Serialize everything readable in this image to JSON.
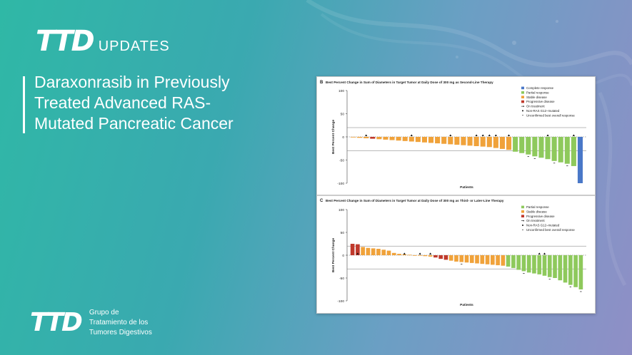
{
  "brand": {
    "logo_text": "TTD",
    "updates": "UPDATES",
    "group_name_lines": [
      "Grupo de",
      "Tratamiento de los",
      "Tumores Digestivos"
    ]
  },
  "slide": {
    "title_lines": [
      "Daraxonrasib in Previously",
      "Treated Advanced RAS-",
      "Mutated Pancreatic Cancer"
    ]
  },
  "colors": {
    "complete_response": "#4a78c8",
    "partial_response": "#8ec95c",
    "stable_disease": "#f0a23a",
    "progressive_disease": "#c0392b"
  },
  "legend_labels": {
    "complete_response": "Complete response",
    "partial_response": "Partial response",
    "stable_disease": "Stable disease",
    "progressive_disease": "Progressive disease",
    "on_treatment": "On treatment",
    "non_g12": "Non-RAS G12–mutated",
    "unconfirmed": "Unconfirmed best overall response"
  },
  "chart_data": [
    {
      "type": "bar",
      "panel": "B",
      "title": "Best Percent Change in Sum of Diameters in Target Tumor at Daily Dose of 300 mg as Second-Line Therapy",
      "xlabel": "Patients",
      "ylabel": "Best Percent Change",
      "ylim": [
        -100,
        100
      ],
      "yticks": [
        100,
        50,
        0,
        -50,
        -100
      ],
      "reference_lines": [
        20,
        -30
      ],
      "legend": [
        "complete_response",
        "partial_response",
        "stable_disease",
        "progressive_disease",
        "on_treatment",
        "non_g12",
        "unconfirmed"
      ],
      "values": [
        -1,
        -2,
        -3,
        -4,
        -5,
        -6,
        -7,
        -8,
        -9,
        -10,
        -11,
        -12,
        -13,
        -14,
        -15,
        -16,
        -17,
        -18,
        -19,
        -20,
        -21,
        -22,
        -24,
        -26,
        -28,
        -32,
        -35,
        -38,
        -42,
        -45,
        -48,
        -52,
        -55,
        -58,
        -63,
        -100
      ],
      "categories": [
        "SD",
        "SD",
        "SD",
        "PD",
        "SD",
        "SD",
        "SD",
        "SD",
        "SD",
        "SD",
        "SD",
        "SD",
        "SD",
        "SD",
        "SD",
        "SD",
        "SD",
        "SD",
        "SD",
        "SD",
        "SD",
        "SD",
        "SD",
        "SD",
        "SD",
        "PR",
        "PR",
        "PR",
        "PR",
        "PR",
        "PR",
        "PR",
        "PR",
        "PR",
        "PR",
        "CR"
      ],
      "on_treatment": [
        2,
        9,
        15,
        19,
        20,
        21,
        22,
        24,
        30,
        34
      ],
      "unconfirmed": [
        27,
        28,
        31,
        33
      ]
    },
    {
      "type": "bar",
      "panel": "C",
      "title": "Best Percent Change in Sum of Diameters in Target Tumor at Daily Dose of 300 mg as Third- or Later-Line Therapy",
      "xlabel": "Patients",
      "ylabel": "Best Percent Change",
      "ylim": [
        -100,
        100
      ],
      "yticks": [
        100,
        50,
        0,
        -50,
        -100
      ],
      "reference_lines": [
        20,
        -30
      ],
      "legend": [
        "partial_response",
        "stable_disease",
        "progressive_disease",
        "on_treatment",
        "non_g12",
        "unconfirmed"
      ],
      "values": [
        25,
        24,
        18,
        16,
        15,
        14,
        12,
        10,
        5,
        3,
        2,
        1,
        0,
        -1,
        -2,
        -3,
        -5,
        -8,
        -10,
        -12,
        -14,
        -15,
        -16,
        -17,
        -18,
        -19,
        -20,
        -21,
        -22,
        -23,
        -25,
        -28,
        -32,
        -35,
        -38,
        -40,
        -42,
        -45,
        -48,
        -50,
        -55,
        -60,
        -65,
        -70,
        -75
      ],
      "categories": [
        "PD",
        "PD",
        "SD",
        "SD",
        "SD",
        "SD",
        "SD",
        "SD",
        "SD",
        "SD",
        "SD",
        "SD",
        "SD",
        "SD",
        "SD",
        "SD",
        "PD",
        "PD",
        "PD",
        "SD",
        "SD",
        "SD",
        "SD",
        "SD",
        "SD",
        "SD",
        "SD",
        "SD",
        "SD",
        "SD",
        "PR",
        "PR",
        "PR",
        "PR",
        "PR",
        "PR",
        "PR",
        "PR",
        "PR",
        "PR",
        "PR",
        "PR",
        "PR",
        "PR",
        "PR"
      ],
      "on_treatment": [
        1,
        10,
        13,
        15,
        36,
        37
      ],
      "unconfirmed": [
        21,
        33,
        38,
        42,
        44
      ]
    }
  ]
}
